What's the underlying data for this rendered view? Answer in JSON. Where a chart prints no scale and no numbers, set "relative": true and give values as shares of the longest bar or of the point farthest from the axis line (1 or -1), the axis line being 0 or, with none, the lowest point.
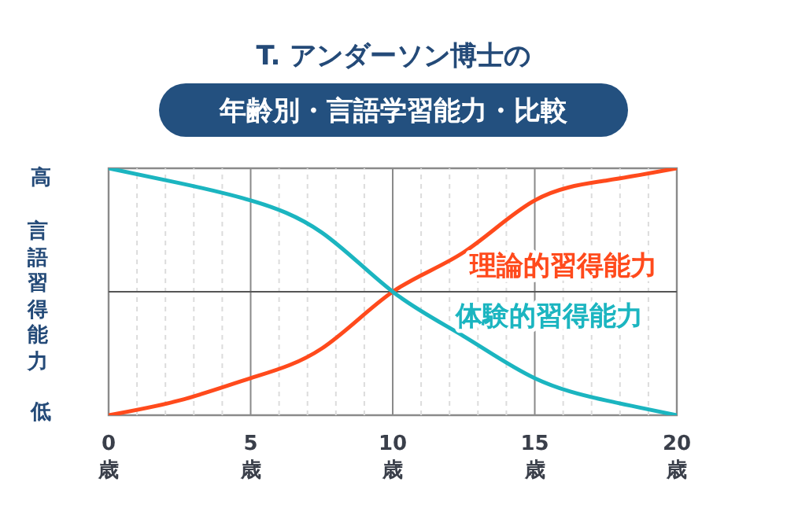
{
  "chart_data": {
    "type": "line",
    "title": "T. アンダーソン博士の",
    "subtitle": "年齢別・言語学習能力・比較",
    "ylabel": "言語習得能力",
    "annotations": [
      "高",
      "低"
    ],
    "relative": true,
    "x": [
      0,
      2.5,
      5,
      7.5,
      10,
      12.5,
      15,
      17.5,
      20
    ],
    "series": [
      {
        "name": "理論的習得能力",
        "color": "#ff4a1c",
        "values": [
          0,
          0.06,
          0.15,
          0.27,
          0.5,
          0.66,
          0.87,
          0.95,
          1
        ]
      },
      {
        "name": "体験的習得能力",
        "color": "#1bb5c0",
        "values": [
          1,
          0.94,
          0.87,
          0.74,
          0.5,
          0.32,
          0.15,
          0.06,
          0
        ]
      }
    ],
    "xlim": [
      0,
      20
    ],
    "xticks": [
      {
        "value": 0,
        "label": "0\n歳"
      },
      {
        "value": 1,
        "label": null
      },
      {
        "value": 2,
        "label": null
      },
      {
        "value": 3,
        "label": null
      },
      {
        "value": 4,
        "label": null
      },
      {
        "value": 5,
        "label": "5\n歳"
      },
      {
        "value": 6,
        "label": null
      },
      {
        "value": 7,
        "label": null
      },
      {
        "value": 8,
        "label": null
      },
      {
        "value": 9,
        "label": null
      },
      {
        "value": 10,
        "label": "10\n歳"
      },
      {
        "value": 11,
        "label": null
      },
      {
        "value": 12,
        "label": null
      },
      {
        "value": 13,
        "label": null
      },
      {
        "value": 14,
        "label": null
      },
      {
        "value": 15,
        "label": "15\n歳"
      },
      {
        "value": 16,
        "label": null
      },
      {
        "value": 17,
        "label": null
      },
      {
        "value": 18,
        "label": null
      },
      {
        "value": 19,
        "label": null
      },
      {
        "value": 20,
        "label": "20\n歳"
      }
    ],
    "grid": "x",
    "ref_lines": [
      {
        "axis": "y",
        "value": 0.5,
        "color": "#555555"
      }
    ]
  }
}
